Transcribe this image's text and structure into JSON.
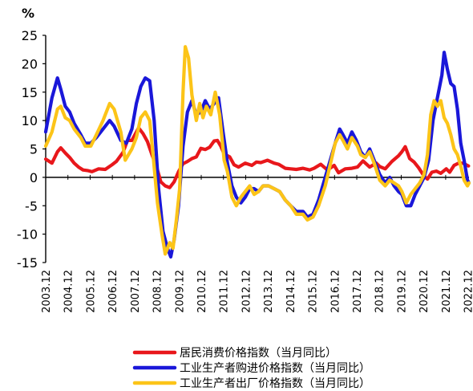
{
  "chart_data": {
    "type": "line",
    "ylabel": "%",
    "ylim": [
      -15,
      25
    ],
    "yticks": [
      -15,
      -10,
      -5,
      0,
      5,
      10,
      15,
      20,
      25
    ],
    "x_ticks": [
      "2003.12",
      "2004.12",
      "2005.12",
      "2006.12",
      "2007.12",
      "2008.12",
      "2009.12",
      "2010.12",
      "2011.12",
      "2012.12",
      "2013.12",
      "2014.12",
      "2015.12",
      "2016.12",
      "2017.12",
      "2018.12",
      "2019.12",
      "2020.12",
      "2021.12",
      "2022.12"
    ],
    "legend_position": "bottom",
    "series": [
      {
        "name": "居民消费价格指数（当月同比）",
        "color": "#e8171b",
        "points": [
          [
            2003.92,
            3.2
          ],
          [
            2004.2,
            2.5
          ],
          [
            2004.45,
            4.5
          ],
          [
            2004.6,
            5.2
          ],
          [
            2004.8,
            4.3
          ],
          [
            2005.0,
            3.5
          ],
          [
            2005.2,
            2.5
          ],
          [
            2005.4,
            1.8
          ],
          [
            2005.6,
            1.3
          ],
          [
            2005.8,
            1.2
          ],
          [
            2006.0,
            1.0
          ],
          [
            2006.3,
            1.5
          ],
          [
            2006.6,
            1.4
          ],
          [
            2006.9,
            2.2
          ],
          [
            2007.1,
            2.8
          ],
          [
            2007.4,
            4.4
          ],
          [
            2007.6,
            6.5
          ],
          [
            2007.8,
            6.5
          ],
          [
            2008.1,
            8.7
          ],
          [
            2008.3,
            7.7
          ],
          [
            2008.5,
            6.3
          ],
          [
            2008.7,
            4.0
          ],
          [
            2008.9,
            2.0
          ],
          [
            2009.1,
            -0.8
          ],
          [
            2009.3,
            -1.5
          ],
          [
            2009.5,
            -1.8
          ],
          [
            2009.7,
            -0.8
          ],
          [
            2009.9,
            1.0
          ],
          [
            2010.1,
            2.4
          ],
          [
            2010.3,
            2.8
          ],
          [
            2010.5,
            3.3
          ],
          [
            2010.7,
            3.6
          ],
          [
            2010.9,
            5.1
          ],
          [
            2011.1,
            4.9
          ],
          [
            2011.3,
            5.3
          ],
          [
            2011.5,
            6.4
          ],
          [
            2011.65,
            6.5
          ],
          [
            2011.8,
            5.5
          ],
          [
            2011.95,
            4.1
          ],
          [
            2012.2,
            3.6
          ],
          [
            2012.4,
            2.2
          ],
          [
            2012.6,
            1.8
          ],
          [
            2012.9,
            2.5
          ],
          [
            2013.2,
            2.1
          ],
          [
            2013.4,
            2.7
          ],
          [
            2013.6,
            2.6
          ],
          [
            2013.9,
            3.0
          ],
          [
            2014.2,
            2.5
          ],
          [
            2014.4,
            2.3
          ],
          [
            2014.7,
            1.6
          ],
          [
            2014.95,
            1.5
          ],
          [
            2015.2,
            1.4
          ],
          [
            2015.5,
            1.6
          ],
          [
            2015.8,
            1.3
          ],
          [
            2016.0,
            1.6
          ],
          [
            2016.3,
            2.3
          ],
          [
            2016.6,
            1.3
          ],
          [
            2016.9,
            2.1
          ],
          [
            2017.1,
            0.8
          ],
          [
            2017.4,
            1.5
          ],
          [
            2017.7,
            1.6
          ],
          [
            2017.95,
            1.8
          ],
          [
            2018.2,
            2.9
          ],
          [
            2018.5,
            1.8
          ],
          [
            2018.8,
            2.5
          ],
          [
            2018.95,
            1.9
          ],
          [
            2019.2,
            1.5
          ],
          [
            2019.5,
            2.8
          ],
          [
            2019.8,
            3.8
          ],
          [
            2019.95,
            4.5
          ],
          [
            2020.1,
            5.4
          ],
          [
            2020.3,
            3.3
          ],
          [
            2020.5,
            2.7
          ],
          [
            2020.7,
            1.7
          ],
          [
            2020.95,
            0.2
          ],
          [
            2021.1,
            -0.3
          ],
          [
            2021.3,
            0.9
          ],
          [
            2021.5,
            1.1
          ],
          [
            2021.7,
            0.7
          ],
          [
            2021.95,
            1.5
          ],
          [
            2022.1,
            0.9
          ],
          [
            2022.3,
            2.1
          ],
          [
            2022.5,
            2.5
          ],
          [
            2022.7,
            2.5
          ],
          [
            2022.95,
            2.0
          ]
        ]
      },
      {
        "name": "工业生产者购进价格指数（当月同比）",
        "color": "#1a17d9",
        "points": [
          [
            2003.92,
            8.0
          ],
          [
            2004.2,
            14.0
          ],
          [
            2004.45,
            17.5
          ],
          [
            2004.6,
            15.5
          ],
          [
            2004.8,
            12.5
          ],
          [
            2005.0,
            11.5
          ],
          [
            2005.2,
            9.5
          ],
          [
            2005.5,
            7.5
          ],
          [
            2005.7,
            6.0
          ],
          [
            2005.95,
            6.0
          ],
          [
            2006.2,
            7.0
          ],
          [
            2006.5,
            8.5
          ],
          [
            2006.8,
            10.0
          ],
          [
            2007.0,
            9.0
          ],
          [
            2007.3,
            6.5
          ],
          [
            2007.55,
            6.0
          ],
          [
            2007.8,
            8.5
          ],
          [
            2008.0,
            13.0
          ],
          [
            2008.2,
            16.0
          ],
          [
            2008.4,
            17.5
          ],
          [
            2008.6,
            17.0
          ],
          [
            2008.8,
            10.0
          ],
          [
            2009.0,
            -2.0
          ],
          [
            2009.2,
            -9.5
          ],
          [
            2009.4,
            -12.5
          ],
          [
            2009.55,
            -14.0
          ],
          [
            2009.7,
            -11.0
          ],
          [
            2009.9,
            -5.0
          ],
          [
            2010.1,
            5.5
          ],
          [
            2010.3,
            11.5
          ],
          [
            2010.5,
            13.5
          ],
          [
            2010.7,
            11.0
          ],
          [
            2010.9,
            11.5
          ],
          [
            2011.1,
            13.5
          ],
          [
            2011.3,
            12.0
          ],
          [
            2011.5,
            13.0
          ],
          [
            2011.7,
            14.0
          ],
          [
            2011.9,
            8.0
          ],
          [
            2012.1,
            2.5
          ],
          [
            2012.3,
            -1.5
          ],
          [
            2012.5,
            -3.5
          ],
          [
            2012.7,
            -4.5
          ],
          [
            2012.9,
            -3.5
          ],
          [
            2013.1,
            -2.0
          ],
          [
            2013.3,
            -2.0
          ],
          [
            2013.5,
            -2.5
          ],
          [
            2013.7,
            -1.5
          ],
          [
            2013.95,
            -1.5
          ],
          [
            2014.2,
            -2.0
          ],
          [
            2014.45,
            -2.5
          ],
          [
            2014.7,
            -4.0
          ],
          [
            2014.95,
            -5.0
          ],
          [
            2015.2,
            -6.0
          ],
          [
            2015.5,
            -6.0
          ],
          [
            2015.7,
            -7.0
          ],
          [
            2015.95,
            -6.5
          ],
          [
            2016.2,
            -4.0
          ],
          [
            2016.5,
            0.0
          ],
          [
            2016.8,
            4.0
          ],
          [
            2016.95,
            6.0
          ],
          [
            2017.15,
            8.5
          ],
          [
            2017.3,
            7.5
          ],
          [
            2017.5,
            6.0
          ],
          [
            2017.7,
            8.0
          ],
          [
            2017.9,
            6.5
          ],
          [
            2018.1,
            4.5
          ],
          [
            2018.3,
            3.5
          ],
          [
            2018.5,
            5.0
          ],
          [
            2018.7,
            3.0
          ],
          [
            2018.95,
            0.5
          ],
          [
            2019.2,
            -1.0
          ],
          [
            2019.4,
            0.0
          ],
          [
            2019.6,
            -1.5
          ],
          [
            2019.8,
            -2.5
          ],
          [
            2019.95,
            -3.0
          ],
          [
            2020.15,
            -5.0
          ],
          [
            2020.35,
            -5.0
          ],
          [
            2020.55,
            -3.0
          ],
          [
            2020.75,
            -1.5
          ],
          [
            2020.95,
            0.0
          ],
          [
            2021.15,
            3.0
          ],
          [
            2021.35,
            10.0
          ],
          [
            2021.55,
            14.0
          ],
          [
            2021.75,
            18.0
          ],
          [
            2021.85,
            22.0
          ],
          [
            2022.0,
            19.0
          ],
          [
            2022.15,
            16.5
          ],
          [
            2022.3,
            16.0
          ],
          [
            2022.45,
            12.0
          ],
          [
            2022.6,
            6.0
          ],
          [
            2022.75,
            3.0
          ],
          [
            2022.9,
            -0.5
          ],
          [
            2022.97,
            -1.0
          ]
        ]
      },
      {
        "name": "工业生产者出厂价格指数（当月同比）",
        "color": "#fcc418",
        "points": [
          [
            2003.92,
            5.5
          ],
          [
            2004.2,
            8.0
          ],
          [
            2004.45,
            12.0
          ],
          [
            2004.6,
            12.5
          ],
          [
            2004.8,
            10.5
          ],
          [
            2005.0,
            10.0
          ],
          [
            2005.2,
            8.5
          ],
          [
            2005.5,
            7.0
          ],
          [
            2005.7,
            5.5
          ],
          [
            2005.95,
            5.5
          ],
          [
            2006.2,
            7.5
          ],
          [
            2006.5,
            10.0
          ],
          [
            2006.8,
            13.0
          ],
          [
            2007.0,
            12.0
          ],
          [
            2007.3,
            8.0
          ],
          [
            2007.5,
            3.0
          ],
          [
            2007.8,
            5.0
          ],
          [
            2008.0,
            7.0
          ],
          [
            2008.2,
            10.5
          ],
          [
            2008.4,
            11.5
          ],
          [
            2008.6,
            10.0
          ],
          [
            2008.75,
            4.0
          ],
          [
            2008.95,
            -4.5
          ],
          [
            2009.15,
            -10.0
          ],
          [
            2009.3,
            -13.5
          ],
          [
            2009.5,
            -11.5
          ],
          [
            2009.65,
            -12.5
          ],
          [
            2009.8,
            -7.5
          ],
          [
            2009.95,
            -2.0
          ],
          [
            2010.1,
            15.0
          ],
          [
            2010.2,
            23.0
          ],
          [
            2010.35,
            21.0
          ],
          [
            2010.5,
            14.5
          ],
          [
            2010.7,
            10.0
          ],
          [
            2010.85,
            13.0
          ],
          [
            2011.0,
            10.5
          ],
          [
            2011.15,
            12.5
          ],
          [
            2011.35,
            11.0
          ],
          [
            2011.55,
            15.0
          ],
          [
            2011.75,
            11.0
          ],
          [
            2011.95,
            3.0
          ],
          [
            2012.1,
            1.0
          ],
          [
            2012.3,
            -3.5
          ],
          [
            2012.5,
            -5.0
          ],
          [
            2012.7,
            -3.5
          ],
          [
            2012.9,
            -2.5
          ],
          [
            2013.1,
            -1.5
          ],
          [
            2013.3,
            -3.0
          ],
          [
            2013.5,
            -2.5
          ],
          [
            2013.7,
            -1.5
          ],
          [
            2013.95,
            -1.5
          ],
          [
            2014.2,
            -2.0
          ],
          [
            2014.45,
            -2.5
          ],
          [
            2014.7,
            -4.0
          ],
          [
            2014.95,
            -5.0
          ],
          [
            2015.2,
            -6.5
          ],
          [
            2015.5,
            -6.5
          ],
          [
            2015.7,
            -7.5
          ],
          [
            2015.95,
            -7.0
          ],
          [
            2016.2,
            -5.0
          ],
          [
            2016.5,
            -1.5
          ],
          [
            2016.8,
            3.5
          ],
          [
            2016.95,
            6.0
          ],
          [
            2017.15,
            7.5
          ],
          [
            2017.3,
            6.5
          ],
          [
            2017.5,
            5.0
          ],
          [
            2017.7,
            7.0
          ],
          [
            2017.95,
            5.5
          ],
          [
            2018.1,
            4.0
          ],
          [
            2018.3,
            3.5
          ],
          [
            2018.5,
            4.5
          ],
          [
            2018.7,
            2.5
          ],
          [
            2018.95,
            -0.5
          ],
          [
            2019.2,
            -1.5
          ],
          [
            2019.4,
            -0.5
          ],
          [
            2019.6,
            -1.0
          ],
          [
            2019.8,
            -1.5
          ],
          [
            2019.95,
            -2.5
          ],
          [
            2020.15,
            -4.5
          ],
          [
            2020.35,
            -3.0
          ],
          [
            2020.55,
            -2.0
          ],
          [
            2020.75,
            -1.0
          ],
          [
            2020.95,
            0.5
          ],
          [
            2021.1,
            4.0
          ],
          [
            2021.25,
            11.0
          ],
          [
            2021.4,
            13.5
          ],
          [
            2021.55,
            12.5
          ],
          [
            2021.7,
            13.5
          ],
          [
            2021.85,
            10.5
          ],
          [
            2022.0,
            9.5
          ],
          [
            2022.15,
            7.5
          ],
          [
            2022.3,
            5.0
          ],
          [
            2022.45,
            4.0
          ],
          [
            2022.6,
            2.0
          ],
          [
            2022.75,
            -0.5
          ],
          [
            2022.9,
            -1.5
          ],
          [
            2022.97,
            -1.0
          ]
        ]
      }
    ]
  }
}
